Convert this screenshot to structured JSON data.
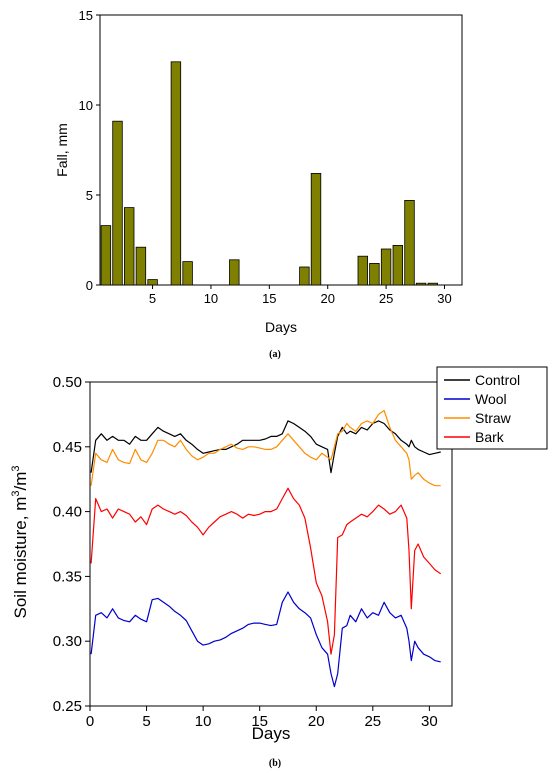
{
  "panels": {
    "a": {
      "caption": "(a)"
    },
    "b": {
      "caption": "(b)"
    }
  },
  "chart_data": [
    {
      "type": "bar",
      "xlabel": "Days",
      "ylabel": "Fall, mm",
      "xlim": [
        0.5,
        31.5
      ],
      "ylim": [
        0,
        15
      ],
      "xticks": [
        5,
        10,
        15,
        20,
        25,
        30
      ],
      "yticks": [
        0,
        5,
        10,
        15
      ],
      "grid": false,
      "colors": {
        "bar": "#808000",
        "bar_edge": "#000000"
      },
      "categories": [
        1,
        2,
        3,
        4,
        5,
        6,
        7,
        8,
        9,
        10,
        11,
        12,
        13,
        14,
        15,
        16,
        17,
        18,
        19,
        20,
        21,
        22,
        23,
        24,
        25,
        26,
        27,
        28,
        29,
        30,
        31
      ],
      "values": [
        3.3,
        9.1,
        4.3,
        2.1,
        0.3,
        0,
        12.4,
        1.3,
        0,
        0,
        0,
        1.4,
        0,
        0,
        0,
        0,
        0,
        1.0,
        6.2,
        0,
        0,
        0,
        1.6,
        1.2,
        2.0,
        2.2,
        4.7,
        0.1,
        0.1,
        0,
        0
      ]
    },
    {
      "type": "line",
      "xlabel": "Days",
      "ylabel": "Soil moisture, m³/m³",
      "ylabel_parts": {
        "main": "Soil moisture, m",
        "sup1": "3",
        "slash": "/m",
        "sup2": "3"
      },
      "xlim": [
        0,
        32
      ],
      "ylim": [
        0.25,
        0.5
      ],
      "xticks": [
        0,
        5,
        10,
        15,
        20,
        25,
        30
      ],
      "yticks": [
        0.25,
        0.3,
        0.35,
        0.4,
        0.45,
        0.5
      ],
      "ytick_labels": [
        "0.25",
        "0.30",
        "0.35",
        "0.40",
        "0.45",
        "0.50"
      ],
      "grid": false,
      "legend_position": "top-right-outside",
      "x": [
        0.1,
        0.5,
        1,
        1.5,
        2,
        2.5,
        3,
        3.5,
        4,
        4.5,
        5,
        5.5,
        6,
        6.5,
        7,
        7.5,
        8,
        8.5,
        9,
        9.5,
        10,
        10.5,
        11,
        11.5,
        12,
        12.5,
        13,
        13.5,
        14,
        14.5,
        15,
        15.5,
        16,
        16.5,
        17,
        17.5,
        18,
        18.5,
        19,
        19.5,
        20,
        20.5,
        21,
        21.3,
        21.6,
        21.9,
        22.3,
        22.7,
        23,
        23.5,
        24,
        24.5,
        25,
        25.5,
        26,
        26.5,
        27,
        27.5,
        28,
        28.2,
        28.4,
        28.7,
        29,
        29.5,
        30,
        30.5,
        31
      ],
      "series": [
        {
          "name": "Control",
          "color": "#000000",
          "values": [
            0.43,
            0.455,
            0.46,
            0.455,
            0.458,
            0.455,
            0.455,
            0.452,
            0.458,
            0.455,
            0.455,
            0.46,
            0.465,
            0.462,
            0.46,
            0.458,
            0.46,
            0.455,
            0.452,
            0.448,
            0.445,
            0.446,
            0.447,
            0.448,
            0.448,
            0.45,
            0.452,
            0.455,
            0.455,
            0.455,
            0.455,
            0.456,
            0.458,
            0.458,
            0.46,
            0.47,
            0.468,
            0.465,
            0.462,
            0.458,
            0.452,
            0.45,
            0.448,
            0.43,
            0.445,
            0.458,
            0.465,
            0.46,
            0.462,
            0.46,
            0.465,
            0.463,
            0.468,
            0.47,
            0.468,
            0.463,
            0.46,
            0.455,
            0.452,
            0.45,
            0.455,
            0.45,
            0.448,
            0.446,
            0.444,
            0.445,
            0.446
          ]
        },
        {
          "name": "Wool",
          "color": "#0000cc",
          "values": [
            0.29,
            0.32,
            0.322,
            0.318,
            0.325,
            0.318,
            0.316,
            0.315,
            0.32,
            0.317,
            0.315,
            0.332,
            0.333,
            0.33,
            0.327,
            0.323,
            0.32,
            0.316,
            0.308,
            0.3,
            0.297,
            0.298,
            0.3,
            0.301,
            0.303,
            0.306,
            0.308,
            0.31,
            0.313,
            0.314,
            0.314,
            0.313,
            0.312,
            0.313,
            0.33,
            0.338,
            0.33,
            0.325,
            0.322,
            0.318,
            0.305,
            0.295,
            0.29,
            0.275,
            0.265,
            0.275,
            0.31,
            0.312,
            0.32,
            0.315,
            0.325,
            0.318,
            0.322,
            0.32,
            0.33,
            0.322,
            0.318,
            0.32,
            0.31,
            0.3,
            0.285,
            0.3,
            0.295,
            0.29,
            0.288,
            0.285,
            0.284
          ]
        },
        {
          "name": "Straw",
          "color": "#ff8c00",
          "values": [
            0.42,
            0.445,
            0.44,
            0.438,
            0.448,
            0.44,
            0.438,
            0.437,
            0.448,
            0.44,
            0.438,
            0.445,
            0.455,
            0.455,
            0.452,
            0.45,
            0.455,
            0.448,
            0.443,
            0.44,
            0.442,
            0.445,
            0.445,
            0.448,
            0.45,
            0.452,
            0.449,
            0.448,
            0.45,
            0.45,
            0.449,
            0.448,
            0.448,
            0.45,
            0.455,
            0.46,
            0.455,
            0.45,
            0.445,
            0.442,
            0.44,
            0.445,
            0.442,
            0.44,
            0.45,
            0.46,
            0.462,
            0.468,
            0.465,
            0.462,
            0.468,
            0.47,
            0.468,
            0.475,
            0.478,
            0.465,
            0.455,
            0.45,
            0.445,
            0.44,
            0.425,
            0.428,
            0.43,
            0.425,
            0.422,
            0.42,
            0.42
          ]
        },
        {
          "name": "Bark",
          "color": "#ff0000",
          "values": [
            0.36,
            0.41,
            0.4,
            0.402,
            0.395,
            0.402,
            0.4,
            0.398,
            0.392,
            0.396,
            0.39,
            0.402,
            0.405,
            0.402,
            0.4,
            0.398,
            0.4,
            0.397,
            0.392,
            0.388,
            0.382,
            0.388,
            0.392,
            0.396,
            0.398,
            0.4,
            0.398,
            0.395,
            0.398,
            0.397,
            0.398,
            0.4,
            0.4,
            0.402,
            0.41,
            0.418,
            0.41,
            0.405,
            0.395,
            0.372,
            0.345,
            0.335,
            0.315,
            0.29,
            0.305,
            0.38,
            0.382,
            0.39,
            0.392,
            0.395,
            0.398,
            0.396,
            0.4,
            0.405,
            0.402,
            0.398,
            0.4,
            0.405,
            0.395,
            0.37,
            0.325,
            0.37,
            0.375,
            0.365,
            0.36,
            0.355,
            0.352
          ]
        }
      ]
    }
  ]
}
